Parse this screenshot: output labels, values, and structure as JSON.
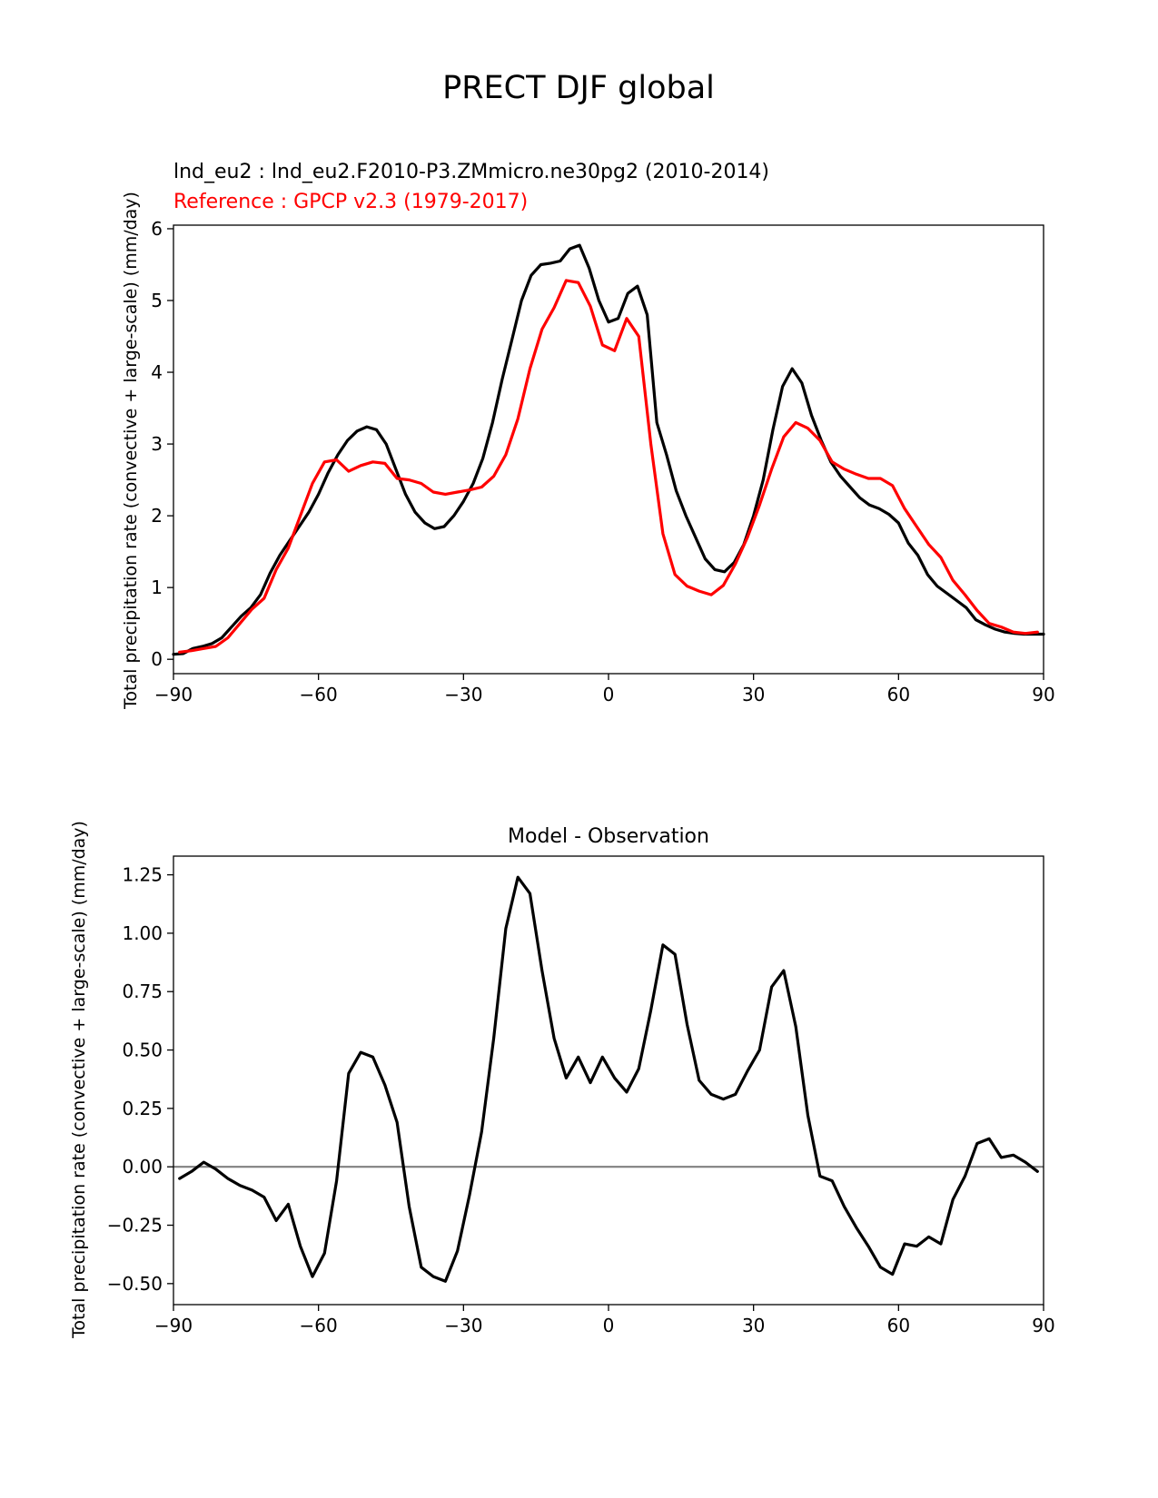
{
  "figure": {
    "suptitle": "PRECT DJF global"
  },
  "colors": {
    "test": "#000000",
    "reference": "#ff0000",
    "zero_line": "#808080",
    "axes": "#000000"
  },
  "chart_data": [
    {
      "type": "line",
      "title_test": "lnd_eu2 : lnd_eu2.F2010-P3.ZMmicro.ne30pg2 (2010-2014)",
      "title_reference": "Reference : GPCP v2.3 (1979-2017)",
      "xlabel": "",
      "ylabel": "Total precipitation rate (convective + large-scale) (mm/day)",
      "xlim": [
        -90,
        90
      ],
      "ylim": [
        -0.2,
        6.05
      ],
      "xticks": [
        -90,
        -60,
        -30,
        0,
        30,
        60,
        90
      ],
      "xtick_labels": [
        "−90",
        "−60",
        "−30",
        "0",
        "30",
        "60",
        "90"
      ],
      "yticks": [
        0,
        1,
        2,
        3,
        4,
        5,
        6
      ],
      "ytick_labels": [
        "0",
        "1",
        "2",
        "3",
        "4",
        "5",
        "6"
      ],
      "series": [
        {
          "name": "lnd_eu2",
          "color": "#000000",
          "x": [
            -90,
            -88,
            -86,
            -84,
            -82,
            -80,
            -78,
            -76,
            -74,
            -72,
            -70,
            -68,
            -66,
            -64,
            -62,
            -60,
            -58,
            -56,
            -54,
            -52,
            -50,
            -48,
            -46,
            -44,
            -42,
            -40,
            -38,
            -36,
            -34,
            -32,
            -30,
            -28,
            -26,
            -24,
            -22,
            -20,
            -18,
            -16,
            -14,
            -12,
            -10,
            -8,
            -6,
            -4,
            -2,
            0,
            2,
            4,
            6,
            8,
            10,
            12,
            14,
            16,
            18,
            20,
            22,
            24,
            26,
            28,
            30,
            32,
            34,
            36,
            38,
            40,
            42,
            44,
            46,
            48,
            50,
            52,
            54,
            56,
            58,
            60,
            62,
            64,
            66,
            68,
            70,
            72,
            74,
            76,
            78,
            80,
            82,
            84,
            86,
            88,
            90
          ],
          "values": [
            0.07,
            0.08,
            0.15,
            0.18,
            0.22,
            0.3,
            0.45,
            0.6,
            0.72,
            0.9,
            1.2,
            1.45,
            1.65,
            1.85,
            2.05,
            2.3,
            2.6,
            2.85,
            3.05,
            3.18,
            3.24,
            3.2,
            3.0,
            2.65,
            2.3,
            2.05,
            1.9,
            1.82,
            1.85,
            2.0,
            2.2,
            2.45,
            2.8,
            3.3,
            3.9,
            4.45,
            5.0,
            5.35,
            5.5,
            5.52,
            5.55,
            5.72,
            5.77,
            5.45,
            5.0,
            4.7,
            4.75,
            5.1,
            5.2,
            4.8,
            3.3,
            2.85,
            2.35,
            2.0,
            1.7,
            1.4,
            1.25,
            1.22,
            1.35,
            1.6,
            2.0,
            2.5,
            3.2,
            3.8,
            4.05,
            3.85,
            3.4,
            3.05,
            2.75,
            2.55,
            2.4,
            2.25,
            2.15,
            2.1,
            2.02,
            1.9,
            1.62,
            1.45,
            1.18,
            1.02,
            0.92,
            0.82,
            0.72,
            0.55,
            0.48,
            0.42,
            0.38,
            0.36,
            0.35,
            0.35,
            0.35
          ]
        },
        {
          "name": "GPCP v2.3",
          "color": "#ff0000",
          "x": [
            -88.75,
            -86.25,
            -83.75,
            -81.25,
            -78.75,
            -76.25,
            -73.75,
            -71.25,
            -68.75,
            -66.25,
            -63.75,
            -61.25,
            -58.75,
            -56.25,
            -53.75,
            -51.25,
            -48.75,
            -46.25,
            -43.75,
            -41.25,
            -38.75,
            -36.25,
            -33.75,
            -31.25,
            -28.75,
            -26.25,
            -23.75,
            -21.25,
            -18.75,
            -16.25,
            -13.75,
            -11.25,
            -8.75,
            -6.25,
            -3.75,
            -1.25,
            1.25,
            3.75,
            6.25,
            8.75,
            11.25,
            13.75,
            16.25,
            18.75,
            21.25,
            23.75,
            26.25,
            28.75,
            31.25,
            33.75,
            36.25,
            38.75,
            41.25,
            43.75,
            46.25,
            48.75,
            51.25,
            53.75,
            56.25,
            58.75,
            61.25,
            63.75,
            66.25,
            68.75,
            71.25,
            73.75,
            76.25,
            78.75,
            81.25,
            83.75,
            86.25,
            88.75
          ],
          "values": [
            0.1,
            0.12,
            0.15,
            0.18,
            0.3,
            0.5,
            0.7,
            0.85,
            1.25,
            1.55,
            2.0,
            2.45,
            2.75,
            2.78,
            2.62,
            2.7,
            2.75,
            2.73,
            2.52,
            2.5,
            2.45,
            2.33,
            2.3,
            2.33,
            2.36,
            2.4,
            2.55,
            2.85,
            3.35,
            4.05,
            4.6,
            4.9,
            5.28,
            5.25,
            4.92,
            4.38,
            4.3,
            4.75,
            4.5,
            3.0,
            1.75,
            1.18,
            1.02,
            0.95,
            0.9,
            1.03,
            1.33,
            1.7,
            2.15,
            2.65,
            3.1,
            3.3,
            3.22,
            3.05,
            2.75,
            2.65,
            2.58,
            2.52,
            2.52,
            2.42,
            2.1,
            1.85,
            1.6,
            1.42,
            1.1,
            0.9,
            0.68,
            0.5,
            0.45,
            0.38,
            0.36,
            0.38
          ]
        }
      ]
    },
    {
      "type": "line",
      "title": "Model - Observation",
      "xlabel": "",
      "ylabel": "Total precipitation rate (convective + large-scale) (mm/day)",
      "xlim": [
        -90,
        90
      ],
      "ylim": [
        -0.59,
        1.33
      ],
      "xticks": [
        -90,
        -60,
        -30,
        0,
        30,
        60,
        90
      ],
      "xtick_labels": [
        "−90",
        "−60",
        "−30",
        "0",
        "30",
        "60",
        "90"
      ],
      "yticks": [
        -0.5,
        -0.25,
        0.0,
        0.25,
        0.5,
        0.75,
        1.0,
        1.25
      ],
      "ytick_labels": [
        "−0.50",
        "−0.25",
        "0.00",
        "0.25",
        "0.50",
        "0.75",
        "1.00",
        "1.25"
      ],
      "zero_line": true,
      "series": [
        {
          "name": "Model - Observation",
          "color": "#000000",
          "x": [
            -88.75,
            -86.25,
            -83.75,
            -81.25,
            -78.75,
            -76.25,
            -73.75,
            -71.25,
            -68.75,
            -66.25,
            -63.75,
            -61.25,
            -58.75,
            -56.25,
            -53.75,
            -51.25,
            -48.75,
            -46.25,
            -43.75,
            -41.25,
            -38.75,
            -36.25,
            -33.75,
            -31.25,
            -28.75,
            -26.25,
            -23.75,
            -21.25,
            -18.75,
            -16.25,
            -13.75,
            -11.25,
            -8.75,
            -6.25,
            -3.75,
            -1.25,
            1.25,
            3.75,
            6.25,
            8.75,
            11.25,
            13.75,
            16.25,
            18.75,
            21.25,
            23.75,
            26.25,
            28.75,
            31.25,
            33.75,
            36.25,
            38.75,
            41.25,
            43.75,
            46.25,
            48.75,
            51.25,
            53.75,
            56.25,
            58.75,
            61.25,
            63.75,
            66.25,
            68.75,
            71.25,
            73.75,
            76.25,
            78.75,
            81.25,
            83.75,
            86.25,
            88.75
          ],
          "values": [
            -0.05,
            -0.02,
            0.02,
            -0.01,
            -0.05,
            -0.08,
            -0.1,
            -0.13,
            -0.23,
            -0.16,
            -0.34,
            -0.47,
            -0.37,
            -0.06,
            0.4,
            0.49,
            0.47,
            0.35,
            0.19,
            -0.17,
            -0.43,
            -0.47,
            -0.49,
            -0.36,
            -0.12,
            0.15,
            0.55,
            1.02,
            1.24,
            1.17,
            0.84,
            0.55,
            0.38,
            0.47,
            0.36,
            0.47,
            0.38,
            0.32,
            0.42,
            0.67,
            0.95,
            0.91,
            0.61,
            0.37,
            0.31,
            0.29,
            0.31,
            0.41,
            0.5,
            0.77,
            0.84,
            0.6,
            0.22,
            -0.04,
            -0.06,
            -0.17,
            -0.26,
            -0.34,
            -0.43,
            -0.46,
            -0.33,
            -0.34,
            -0.3,
            -0.33,
            -0.14,
            -0.04,
            0.1,
            0.12,
            0.04,
            0.05,
            0.02,
            -0.02
          ]
        }
      ]
    }
  ]
}
